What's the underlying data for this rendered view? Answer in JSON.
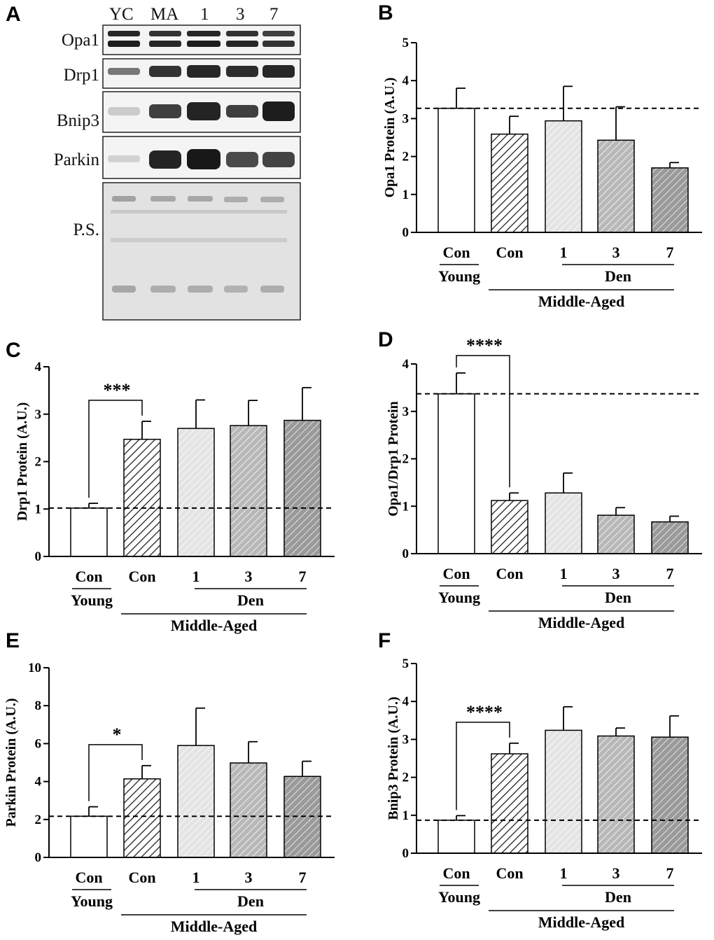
{
  "colors": {
    "axis": "#000000",
    "bar_young": "#ffffff",
    "bar_con": "#ffffff",
    "bar_d1": "#e6e6e6",
    "bar_d3": "#bdbdbd",
    "bar_d7": "#9e9e9e",
    "hatch_con": "#222222",
    "hatch_d1": "#ffffff",
    "hatch_d3": "#ffffff",
    "hatch_d7": "#ffffff"
  },
  "blot": {
    "panel_label": "A",
    "lanes": [
      "YC",
      "MA",
      "1",
      "3",
      "7"
    ],
    "proteins": [
      "Opa1",
      "Drp1",
      "Bnip3",
      "Parkin",
      "P.S."
    ]
  },
  "chart_data": [
    {
      "panel_label": "B",
      "type": "bar",
      "ylabel": "Opa1  Protein  (A.U.)",
      "ylim": [
        0,
        5
      ],
      "yticks": [
        "0",
        "1",
        "2",
        "3",
        "4",
        "5"
      ],
      "categories": [
        "Con",
        "Con",
        "1",
        "3",
        "7"
      ],
      "group_labels": {
        "young": "Young",
        "den": "Den",
        "middle_aged": "Middle-Aged"
      },
      "values": [
        3.27,
        2.59,
        2.94,
        2.43,
        1.7
      ],
      "errors": [
        0.53,
        0.47,
        0.91,
        0.88,
        0.14
      ],
      "reference_line": 3.27,
      "significance": null
    },
    {
      "panel_label": "C",
      "type": "bar",
      "ylabel": "Drp1  Protein  (A.U.)",
      "ylim": [
        0,
        4
      ],
      "yticks": [
        "0",
        "1",
        "2",
        "3",
        "4"
      ],
      "categories": [
        "Con",
        "Con",
        "1",
        "3",
        "7"
      ],
      "group_labels": {
        "young": "Young",
        "den": "Den",
        "middle_aged": "Middle-Aged"
      },
      "values": [
        1.02,
        2.47,
        2.7,
        2.76,
        2.87
      ],
      "errors": [
        0.1,
        0.38,
        0.6,
        0.53,
        0.69
      ],
      "reference_line": 1.02,
      "significance": {
        "label": "***",
        "from": 0,
        "to": 1
      }
    },
    {
      "panel_label": "D",
      "type": "bar",
      "ylabel": "Opa1/Drp1 Protein",
      "ylim": [
        0,
        4
      ],
      "yticks": [
        "0",
        "1",
        "2",
        "3",
        "4"
      ],
      "categories": [
        "Con",
        "Con",
        "1",
        "3",
        "7"
      ],
      "group_labels": {
        "young": "Young",
        "den": "Den",
        "middle_aged": "Middle-Aged"
      },
      "values": [
        3.37,
        1.12,
        1.28,
        0.81,
        0.67
      ],
      "errors": [
        0.44,
        0.16,
        0.42,
        0.16,
        0.12
      ],
      "reference_line": 3.37,
      "significance": {
        "label": "****",
        "from": 0,
        "to": 1
      }
    },
    {
      "panel_label": "E",
      "type": "bar",
      "ylabel": "Parkin Protein (A.U.)",
      "ylim": [
        0,
        10
      ],
      "yticks": [
        "0",
        "2",
        "4",
        "6",
        "8",
        "10"
      ],
      "categories": [
        "Con",
        "Con",
        "1",
        "3",
        "7"
      ],
      "group_labels": {
        "young": "Young",
        "den": "Den",
        "middle_aged": "Middle-Aged"
      },
      "values": [
        2.17,
        4.14,
        5.9,
        4.98,
        4.27
      ],
      "errors": [
        0.5,
        0.7,
        1.97,
        1.12,
        0.8
      ],
      "reference_line": 2.17,
      "significance": {
        "label": "*",
        "from": 0,
        "to": 1
      }
    },
    {
      "panel_label": "F",
      "type": "bar",
      "ylabel": "Bnip3 Protein (A.U.)",
      "ylim": [
        0,
        5
      ],
      "yticks": [
        "0",
        "1",
        "2",
        "3",
        "4",
        "5"
      ],
      "categories": [
        "Con",
        "Con",
        "1",
        "3",
        "7"
      ],
      "group_labels": {
        "young": "Young",
        "den": "Den",
        "middle_aged": "Middle-Aged"
      },
      "values": [
        0.87,
        2.62,
        3.24,
        3.09,
        3.06
      ],
      "errors": [
        0.12,
        0.28,
        0.62,
        0.21,
        0.56
      ],
      "reference_line": 0.87,
      "significance": {
        "label": "****",
        "from": 0,
        "to": 1
      }
    }
  ]
}
